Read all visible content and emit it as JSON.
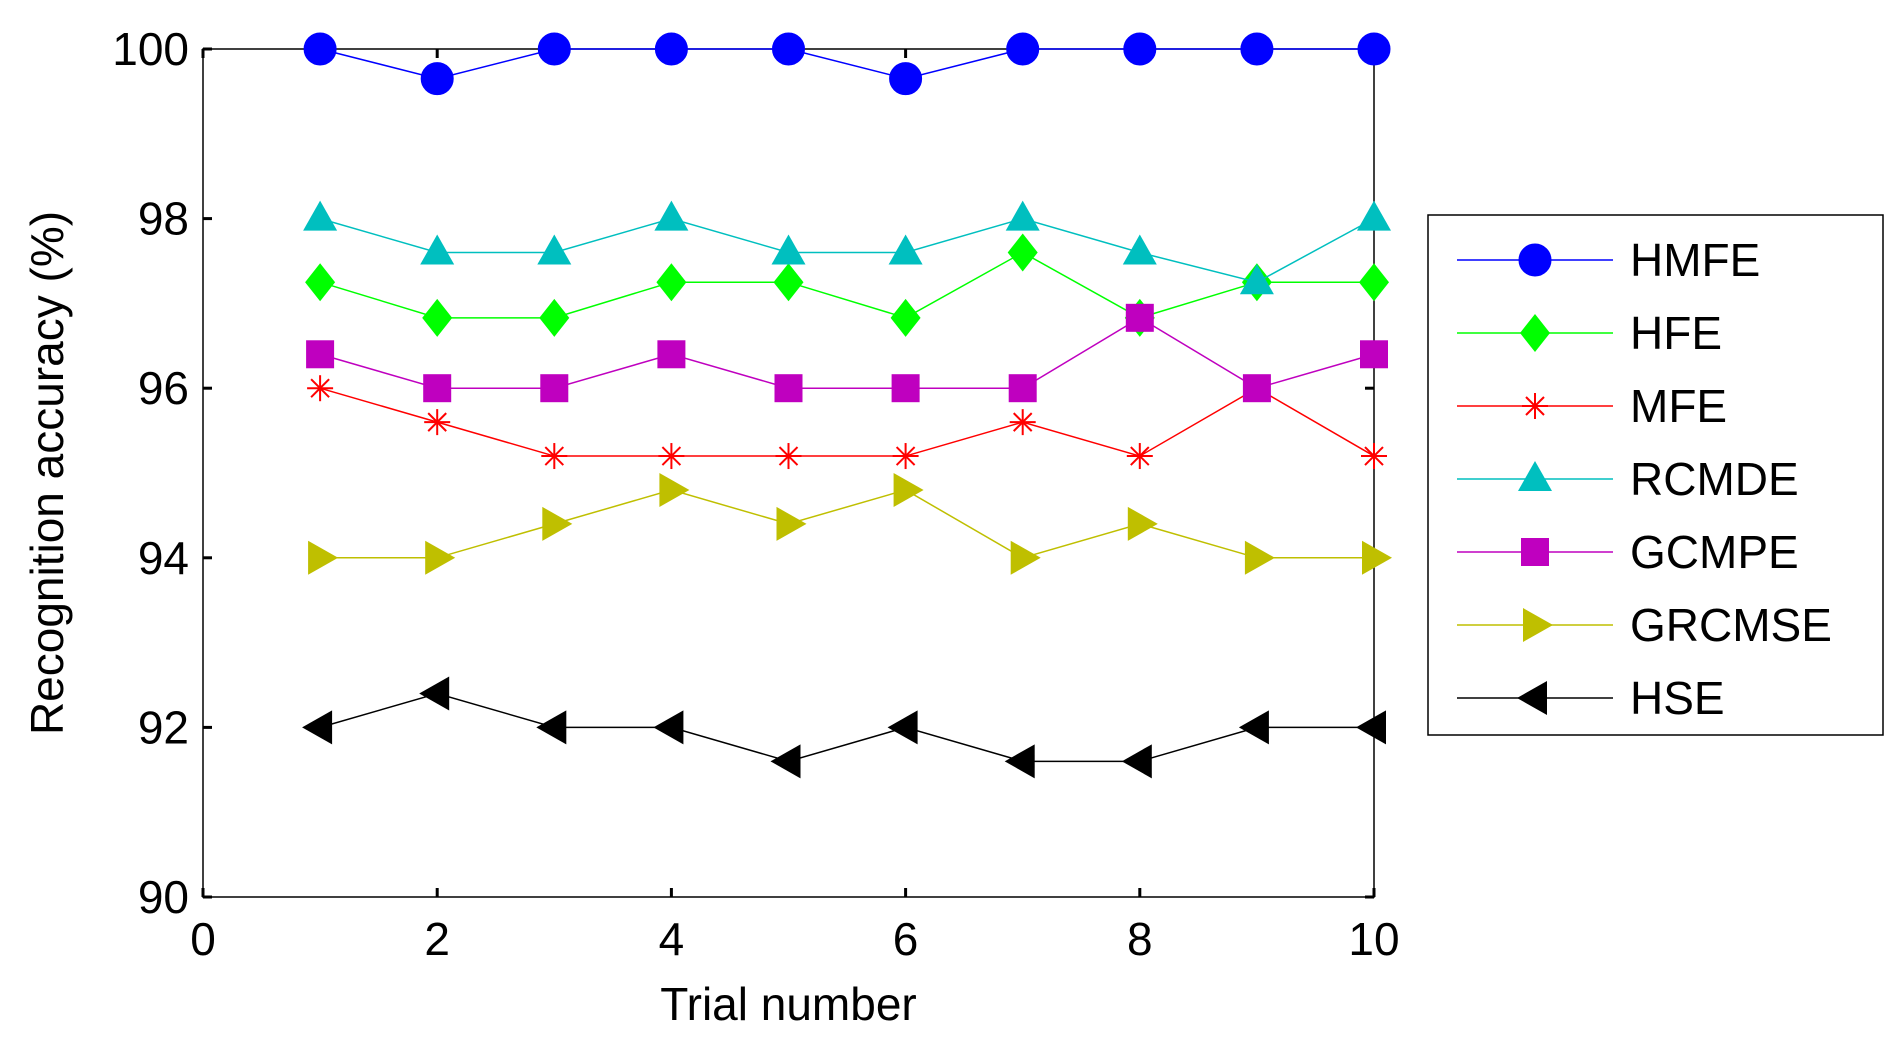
{
  "chart_data": {
    "type": "line",
    "title": "",
    "xlabel": "Trial number",
    "ylabel": "Recognition accuracy (%)",
    "xlim": [
      0,
      10
    ],
    "ylim": [
      90,
      100
    ],
    "xticks": [
      0,
      2,
      4,
      6,
      8,
      10
    ],
    "yticks": [
      90,
      92,
      94,
      96,
      98,
      100
    ],
    "legend_position": "right-outside",
    "grid": false,
    "x": [
      1,
      2,
      3,
      4,
      5,
      6,
      7,
      8,
      9,
      10
    ],
    "series": [
      {
        "name": "HMFE",
        "color": "#0000ff",
        "marker": "circle",
        "values": [
          100,
          99.65,
          100,
          100,
          100,
          99.65,
          100,
          100,
          100,
          100
        ]
      },
      {
        "name": "HFE",
        "color": "#00ff00",
        "marker": "diamond",
        "values": [
          97.25,
          96.83,
          96.83,
          97.25,
          97.25,
          96.83,
          97.6,
          96.83,
          97.25,
          97.25
        ]
      },
      {
        "name": "MFE",
        "color": "#ff0000",
        "marker": "asterisk",
        "values": [
          96.0,
          95.6,
          95.2,
          95.2,
          95.2,
          95.2,
          95.6,
          95.2,
          96.0,
          95.2
        ]
      },
      {
        "name": "RCMDE",
        "color": "#00bfbf",
        "marker": "triangle-up",
        "values": [
          98.0,
          97.6,
          97.6,
          98.0,
          97.6,
          97.6,
          98.0,
          97.6,
          97.25,
          98.0
        ]
      },
      {
        "name": "GCMPE",
        "color": "#bf00bf",
        "marker": "square",
        "values": [
          96.4,
          96.0,
          96.0,
          96.4,
          96.0,
          96.0,
          96.0,
          96.83,
          96.0,
          96.4
        ]
      },
      {
        "name": "GRCMSE",
        "color": "#bfbf00",
        "marker": "triangle-right",
        "values": [
          94.0,
          94.0,
          94.4,
          94.8,
          94.4,
          94.8,
          94.0,
          94.4,
          94.0,
          94.0
        ]
      },
      {
        "name": "HSE",
        "color": "#000000",
        "marker": "triangle-left",
        "values": [
          92.0,
          92.4,
          92.0,
          92.0,
          91.6,
          92.0,
          91.6,
          91.6,
          92.0,
          92.0
        ]
      }
    ]
  }
}
